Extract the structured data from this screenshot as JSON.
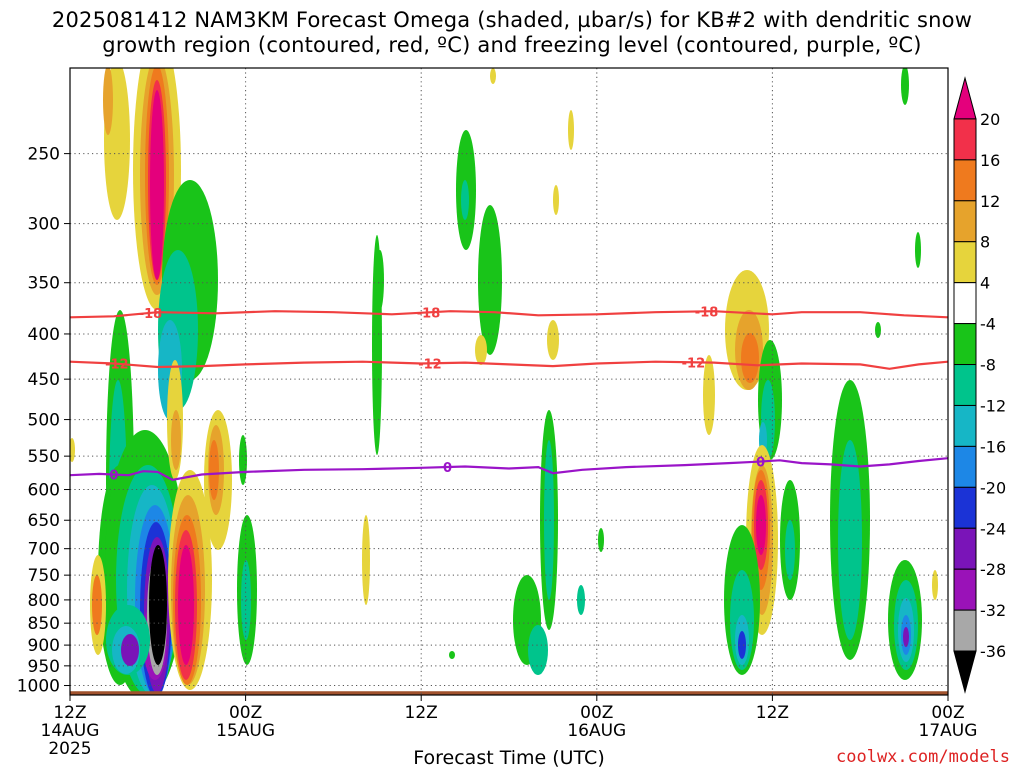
{
  "title_line_1": "2025081412 NAM3KM Forecast Omega (shaded, µbar/s) for KB#2 with dendritic snow",
  "title_line_2": "growth region (contoured, red, ºC) and freezing level (contoured, purple, ºC)",
  "credit": "coolwx.com/models",
  "chart_data": {
    "type": "time-height cross section",
    "xlabel": "Forecast Time (UTC)",
    "ylabel": "",
    "x_range_hours": [
      0,
      60
    ],
    "x_ticks": [
      {
        "hour": 0,
        "lines": [
          "12Z",
          "14AUG",
          "2025"
        ]
      },
      {
        "hour": 12,
        "lines": [
          "00Z",
          "15AUG"
        ]
      },
      {
        "hour": 24,
        "lines": [
          "12Z"
        ]
      },
      {
        "hour": 36,
        "lines": [
          "00Z",
          "16AUG"
        ]
      },
      {
        "hour": 48,
        "lines": [
          "12Z"
        ]
      },
      {
        "hour": 60,
        "lines": [
          "00Z",
          "17AUG"
        ]
      }
    ],
    "y_range_hPa": [
      1025,
      200
    ],
    "y_ticks": [
      250,
      300,
      350,
      400,
      450,
      500,
      550,
      600,
      650,
      700,
      750,
      800,
      850,
      900,
      950,
      1000
    ],
    "grid": "dotted",
    "colorbar": {
      "label_values": [
        20,
        16,
        12,
        8,
        4,
        -4,
        -8,
        -12,
        -16,
        -20,
        -24,
        -28,
        -32,
        -36
      ],
      "colors": [
        "#e4007c",
        "#f2304a",
        "#ef7a1e",
        "#e6a32c",
        "#e6d43c",
        "#ffffff",
        "#19c419",
        "#00c48c",
        "#16b6c6",
        "#1d87e6",
        "#1b33d6",
        "#7a14b8",
        "#9a12b8",
        "#a8a8a8",
        "#000000"
      ]
    },
    "contours": [
      {
        "color": "#f04040",
        "label": "-18",
        "points": [
          [
            0,
            383
          ],
          [
            3,
            382
          ],
          [
            6,
            378
          ],
          [
            10,
            379
          ],
          [
            14,
            377
          ],
          [
            18,
            378
          ],
          [
            22,
            380
          ],
          [
            26,
            377
          ],
          [
            29,
            378
          ],
          [
            32,
            381
          ],
          [
            36,
            380
          ],
          [
            40,
            378
          ],
          [
            44,
            377
          ],
          [
            48,
            380
          ],
          [
            50,
            378
          ],
          [
            54,
            378
          ],
          [
            57,
            381
          ],
          [
            60,
            383
          ]
        ],
        "label_hours": [
          5.5,
          24.5,
          43.5
        ]
      },
      {
        "color": "#f04040",
        "label": "-12",
        "points": [
          [
            0,
            430
          ],
          [
            3,
            432
          ],
          [
            6,
            436
          ],
          [
            9,
            435
          ],
          [
            12,
            433
          ],
          [
            16,
            431
          ],
          [
            20,
            430
          ],
          [
            24,
            432
          ],
          [
            27,
            431
          ],
          [
            30,
            433
          ],
          [
            33,
            435
          ],
          [
            36,
            432
          ],
          [
            40,
            430
          ],
          [
            44,
            431
          ],
          [
            47,
            434
          ],
          [
            50,
            432
          ],
          [
            54,
            433
          ],
          [
            56,
            438
          ],
          [
            58,
            433
          ],
          [
            60,
            430
          ]
        ],
        "label_hours": [
          3.2,
          24.6,
          42.6
        ]
      },
      {
        "color": "#9a14c8",
        "label": "0",
        "points": [
          [
            0,
            578
          ],
          [
            2,
            576
          ],
          [
            4,
            578
          ],
          [
            5,
            572
          ],
          [
            6,
            573
          ],
          [
            7,
            585
          ],
          [
            9,
            577
          ],
          [
            12,
            573
          ],
          [
            16,
            570
          ],
          [
            20,
            569
          ],
          [
            24,
            567
          ],
          [
            27,
            565
          ],
          [
            30,
            568
          ],
          [
            32,
            566
          ],
          [
            33,
            575
          ],
          [
            35,
            570
          ],
          [
            38,
            566
          ],
          [
            42,
            563
          ],
          [
            45,
            560
          ],
          [
            47,
            558
          ],
          [
            48.5,
            556
          ],
          [
            50,
            560
          ],
          [
            52,
            562
          ],
          [
            54,
            565
          ],
          [
            56,
            562
          ],
          [
            58,
            557
          ],
          [
            60,
            553
          ]
        ],
        "label_hours": [
          3.0,
          25.8,
          47.2
        ]
      }
    ],
    "ground_level_hPa": 1015,
    "omega_features": [
      {
        "name": "strong ascent core",
        "value_min": -36,
        "hour": 5.7,
        "p_top": 580,
        "p_bottom": 880
      },
      {
        "name": "strong descent upper",
        "value_max": 20,
        "hour": 6.1,
        "p_top": 200,
        "p_bottom": 360
      },
      {
        "name": "descent lower",
        "value_max": 20,
        "hour": 8.1,
        "p_top": 600,
        "p_bottom": 970
      },
      {
        "name": "descent",
        "value_max": 20,
        "hour": 47.8,
        "p_top": 600,
        "p_bottom": 800
      },
      {
        "name": "ascent",
        "value_min": -20,
        "hour": 56.6,
        "p_top": 850,
        "p_bottom": 960
      }
    ]
  }
}
